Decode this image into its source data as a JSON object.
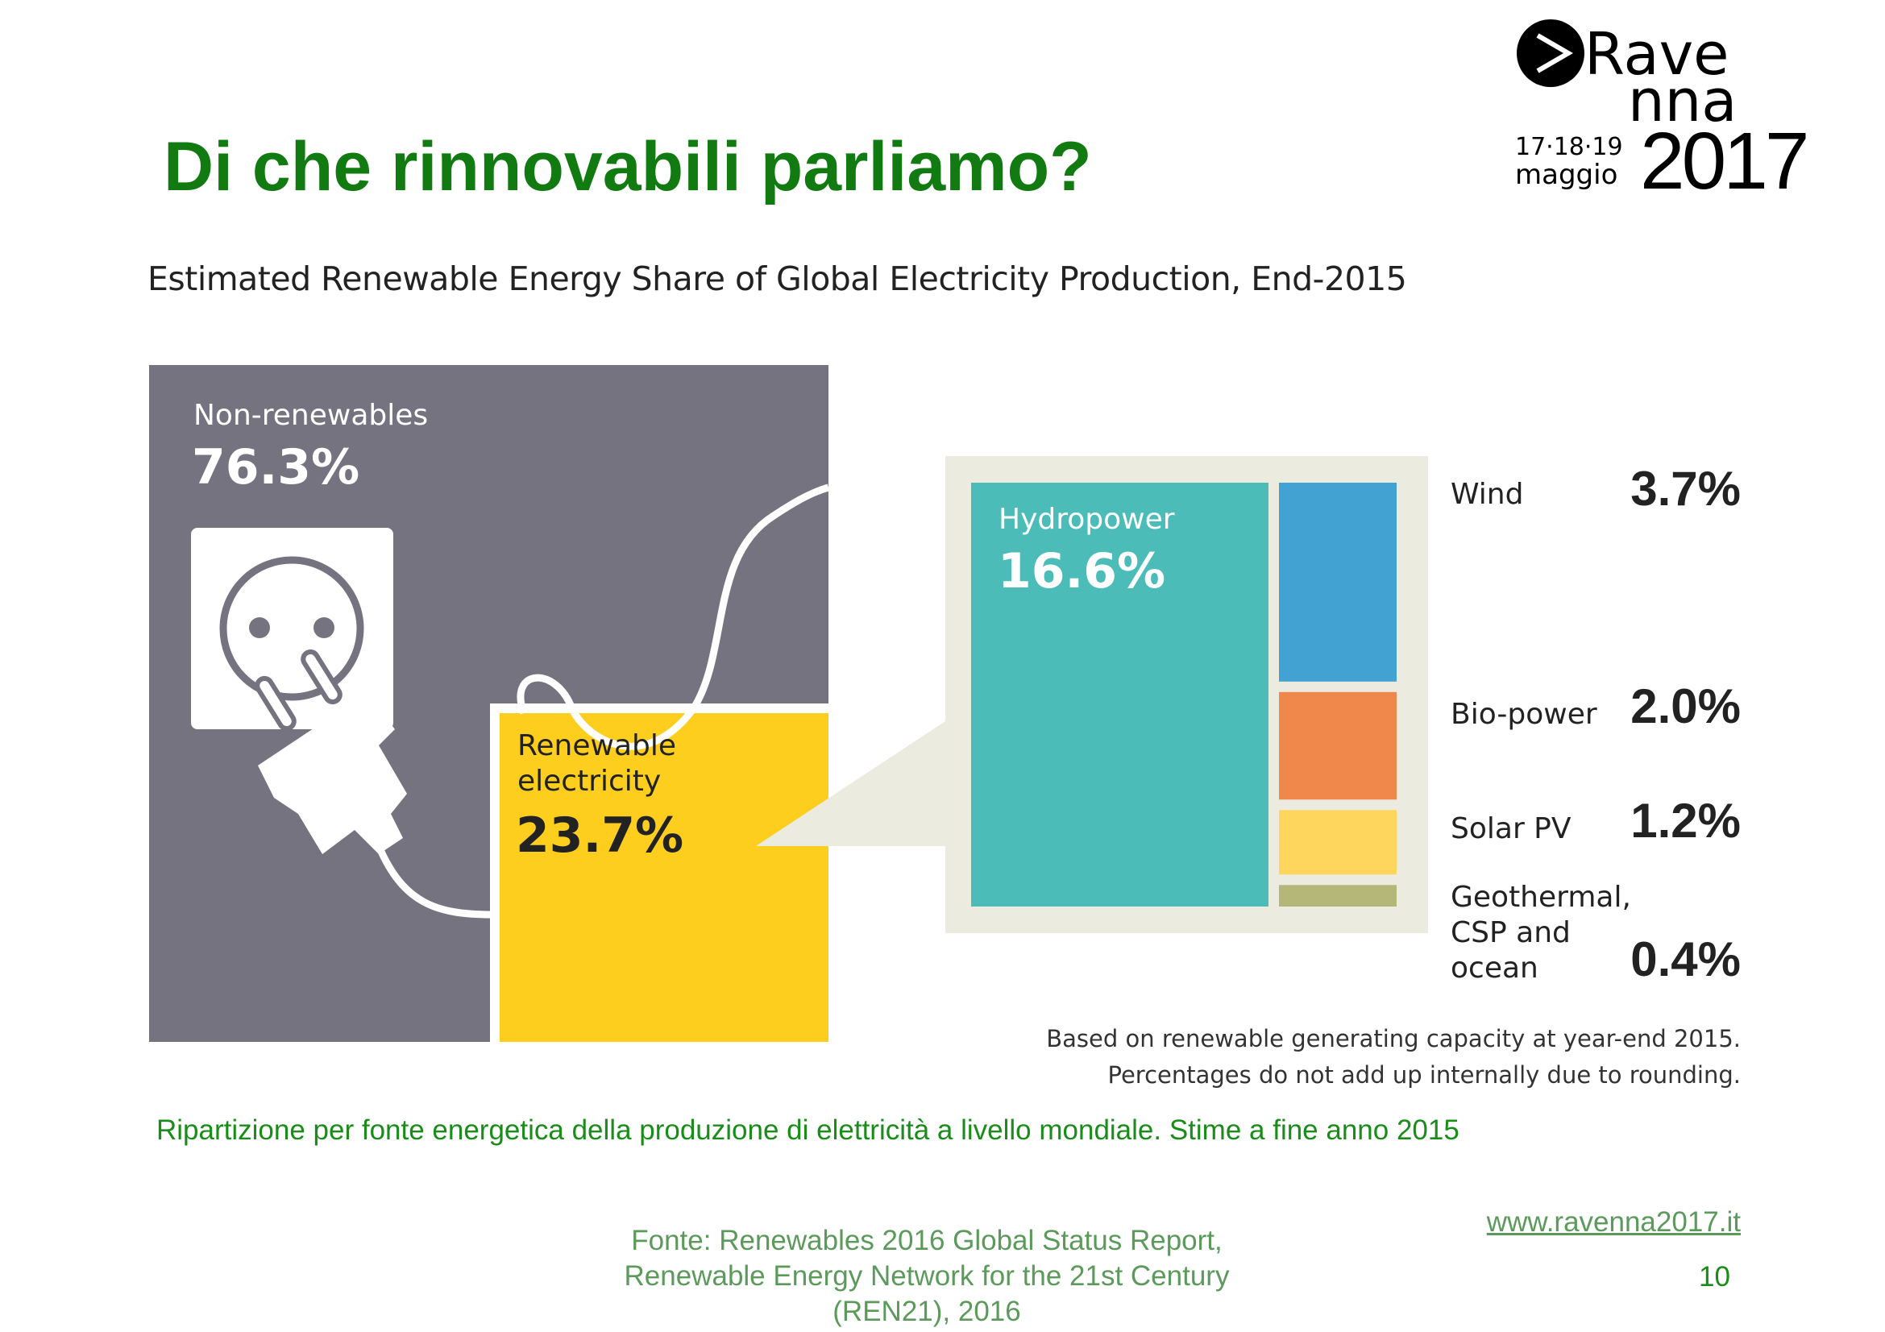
{
  "slide": {
    "title": "Di che rinnovabili parliamo?",
    "caption": "Ripartizione per fonte energetica della produzione di elettricità a livello mondiale. Stime a fine anno 2015",
    "source_lines": [
      "Fonte: Renewables 2016 Global Status Report,",
      "Renewable Energy Network for the 21st Century",
      "(REN21), 2016"
    ],
    "url": "www.ravenna2017.it",
    "page_number": "10",
    "logo": {
      "line1": "Rave",
      "line2": "nna",
      "year": "2017",
      "dates": "17·18·19",
      "month": "maggio"
    }
  },
  "chart_data": {
    "type": "treemap",
    "title": "Estimated Renewable Energy Share of Global Electricity Production, End-2015",
    "unit": "%",
    "top_level": [
      {
        "name": "Non-renewables",
        "value": 76.3,
        "display": "76.3%",
        "color": "#75737f"
      },
      {
        "name": "Renewable electricity",
        "name_lines": [
          "Renewable",
          "electricity"
        ],
        "value": 23.7,
        "display": "23.7%",
        "color": "#fdce1e"
      }
    ],
    "renewable_breakdown": [
      {
        "name": "Hydropower",
        "value": 16.6,
        "display": "16.6%",
        "color": "#4bbcb8"
      },
      {
        "name": "Wind",
        "value": 3.7,
        "display": "3.7%",
        "color": "#42a3d3"
      },
      {
        "name": "Bio-power",
        "value": 2.0,
        "display": "2.0%",
        "color": "#f0884b"
      },
      {
        "name": "Solar PV",
        "value": 1.2,
        "display": "1.2%",
        "color": "#fed65e"
      },
      {
        "name": "Geothermal, CSP and ocean",
        "name_lines": [
          "Geothermal,",
          "CSP and",
          "ocean"
        ],
        "value": 0.4,
        "display": "0.4%",
        "color": "#b4b777"
      }
    ],
    "notes": [
      "Based on renewable generating capacity at year-end 2015.",
      "Percentages do not add up internally due to rounding."
    ]
  }
}
